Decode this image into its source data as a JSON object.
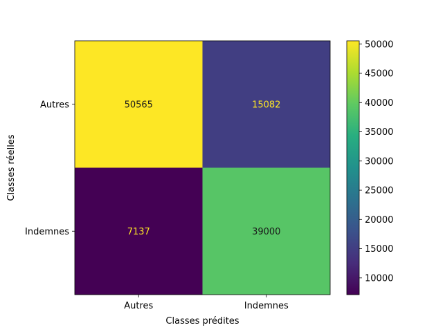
{
  "chart_data": {
    "type": "heatmap",
    "title": "",
    "xlabel": "Classes prédites",
    "ylabel": "Classes réelles",
    "x_categories": [
      "Autres",
      "Indemnes"
    ],
    "y_categories": [
      "Autres",
      "Indemnes"
    ],
    "values": [
      [
        50565,
        15082
      ],
      [
        7137,
        39000
      ]
    ],
    "colormap": "viridis",
    "colorbar": {
      "min": 7137,
      "max": 50565,
      "ticks": [
        10000,
        15000,
        20000,
        25000,
        30000,
        35000,
        40000,
        45000,
        50000
      ]
    },
    "grid": false
  }
}
